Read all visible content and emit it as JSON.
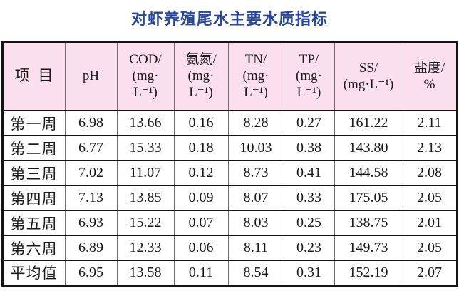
{
  "title": "对虾养殖尾水主要水质指标",
  "colors": {
    "title_blue": "#2646a8",
    "header_pink": "#fbdfee",
    "border_black": "#151515",
    "page_background": "#ffffff"
  },
  "table": {
    "columns": [
      {
        "id": "item",
        "lines": [
          "项目"
        ]
      },
      {
        "id": "ph",
        "lines": [
          "pH"
        ]
      },
      {
        "id": "cod",
        "lines": [
          "COD/",
          "(mg·",
          "L⁻¹)"
        ]
      },
      {
        "id": "ammonia",
        "lines": [
          "氨氮/",
          "(mg·",
          "L⁻¹)"
        ]
      },
      {
        "id": "tn",
        "lines": [
          "TN/",
          "(mg·",
          "L⁻¹)"
        ]
      },
      {
        "id": "tp",
        "lines": [
          "TP/",
          "(mg·",
          "L⁻¹)"
        ]
      },
      {
        "id": "ss",
        "lines": [
          "SS/",
          "(mg·L⁻¹)"
        ]
      },
      {
        "id": "salinity",
        "lines": [
          "盐度/",
          "%"
        ]
      }
    ],
    "rows": [
      [
        "第一周",
        "6.98",
        "13.66",
        "0.16",
        "8.28",
        "0.27",
        "161.22",
        "2.11"
      ],
      [
        "第二周",
        "6.77",
        "15.33",
        "0.18",
        "10.03",
        "0.38",
        "143.80",
        "2.13"
      ],
      [
        "第三周",
        "7.02",
        "11.07",
        "0.12",
        "8.73",
        "0.41",
        "144.58",
        "2.08"
      ],
      [
        "第四周",
        "7.13",
        "13.85",
        "0.09",
        "8.07",
        "0.33",
        "175.05",
        "2.05"
      ],
      [
        "第五周",
        "6.93",
        "15.22",
        "0.07",
        "8.03",
        "0.25",
        "138.75",
        "2.01"
      ],
      [
        "第六周",
        "6.89",
        "12.33",
        "0.06",
        "8.11",
        "0.23",
        "149.73",
        "2.05"
      ],
      [
        "平均值",
        "6.95",
        "13.58",
        "0.11",
        "8.54",
        "0.31",
        "152.19",
        "2.07"
      ]
    ]
  }
}
